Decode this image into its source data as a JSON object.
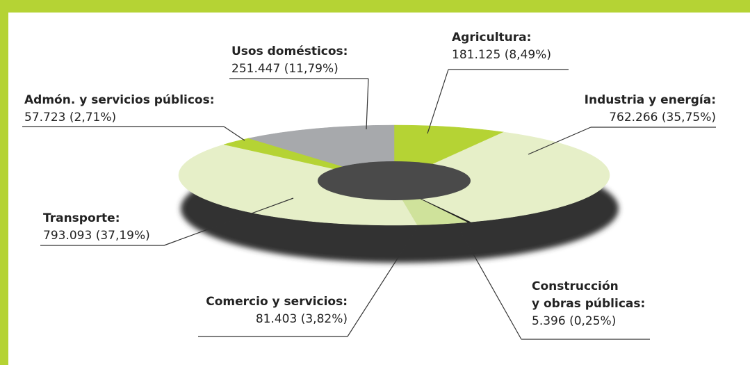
{
  "chart_data": {
    "type": "pie",
    "donut": true,
    "categories": [
      "Agricultura:",
      "Industria y energía:",
      "Construcción\ny obras públicas:",
      "Comercio y servicios:",
      "Transporte:",
      "Admón. y servicios públicos:",
      "Usos domésticos:"
    ],
    "values": [
      181125,
      762266,
      5396,
      81403,
      793093,
      57723,
      251447
    ],
    "value_labels": [
      "181.125 (8,49%)",
      "762.266 (35,75%)",
      "5.396 (0,25%)",
      "81.403 (3,82%)",
      "793.093 (37,19%)",
      "57.723 (2,71%)",
      "251.447 (11,79%)"
    ],
    "colors": [
      "#b5d334",
      "#e6efc8",
      "#1e1e1e",
      "#cfe29b",
      "#e6efc8",
      "#b5d334",
      "#a7a9ac"
    ]
  }
}
